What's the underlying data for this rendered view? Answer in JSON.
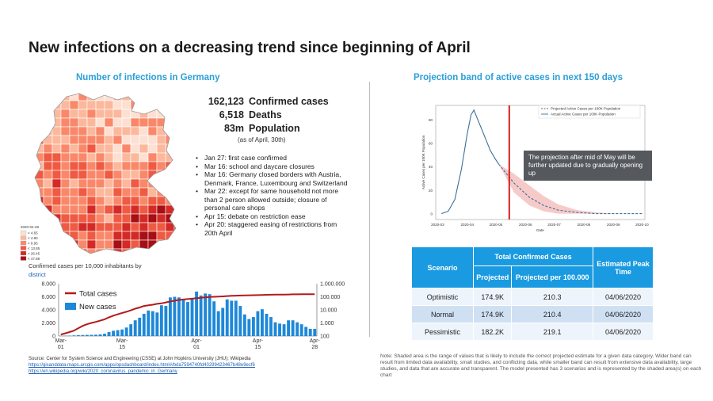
{
  "page": {
    "title": "New infections on a decreasing trend since beginning of April",
    "left_subtitle": "Number of infections in Germany",
    "right_subtitle": "Projection band of active cases in next 150 days"
  },
  "stats": [
    {
      "value": "162,123",
      "label": "Confirmed cases"
    },
    {
      "value": "6,518",
      "label": "Deaths"
    },
    {
      "value": "83m",
      "label": "Population"
    }
  ],
  "as_of": "(as of April, 30th)",
  "events": [
    "Jan 27: first case confirmed",
    "Mar 16: school and daycare closures",
    "Mar 16: Germany closed borders with Austria, Denmark, France, Luxembourg and Switzerland",
    "Mar 22: except for same household not more than 2 person allowed outside; closure of personal care shops",
    "Apr 15: debate on restriction ease",
    "Apr 20: staggered easing of restrictions from 20th April"
  ],
  "map": {
    "legend_title": "2020-04-28",
    "legend": [
      "< 4.65",
      "< 4.80",
      "< 9.95",
      "< 13.85",
      "< 26.45",
      "< 47.88"
    ],
    "caption": "Confirmed cases per 10,000 inhabitants by",
    "caption_link": "district",
    "colors": [
      "#fde0d2",
      "#fcb89c",
      "#f9886a",
      "#ef5a42",
      "#d42a26",
      "#a50f15"
    ]
  },
  "chart_data": [
    {
      "type": "bar",
      "title": "",
      "categories": [
        "Mar-01",
        "Mar-02",
        "Mar-03",
        "Mar-04",
        "Mar-05",
        "Mar-06",
        "Mar-07",
        "Mar-08",
        "Mar-09",
        "Mar-10",
        "Mar-11",
        "Mar-12",
        "Mar-13",
        "Mar-14",
        "Mar-15",
        "Mar-16",
        "Mar-17",
        "Mar-18",
        "Mar-19",
        "Mar-20",
        "Mar-21",
        "Mar-22",
        "Mar-23",
        "Mar-24",
        "Mar-25",
        "Mar-26",
        "Mar-27",
        "Mar-28",
        "Mar-29",
        "Mar-30",
        "Mar-31",
        "Apr-01",
        "Apr-02",
        "Apr-03",
        "Apr-04",
        "Apr-05",
        "Apr-06",
        "Apr-07",
        "Apr-08",
        "Apr-09",
        "Apr-10",
        "Apr-11",
        "Apr-12",
        "Apr-13",
        "Apr-14",
        "Apr-15",
        "Apr-16",
        "Apr-17",
        "Apr-18",
        "Apr-19",
        "Apr-20",
        "Apr-21",
        "Apr-22",
        "Apr-23",
        "Apr-24",
        "Apr-25",
        "Apr-26",
        "Apr-27",
        "Apr-28"
      ],
      "x_tick_labels": [
        "Mar-\n01",
        "Mar-\n15",
        "Apr-\n01",
        "Apr-\n15",
        "Apr-\n28"
      ],
      "series": [
        {
          "name": "New cases",
          "values": [
            30,
            40,
            60,
            90,
            120,
            150,
            170,
            180,
            200,
            250,
            350,
            600,
            800,
            900,
            1000,
            1300,
            1800,
            2400,
            2800,
            3400,
            3900,
            3800,
            3600,
            4700,
            4600,
            5900,
            6000,
            5900,
            5600,
            5200,
            5800,
            6800,
            6200,
            6500,
            6400,
            5300,
            3800,
            4300,
            5600,
            5400,
            5400,
            4600,
            3300,
            2600,
            2900,
            3800,
            4100,
            3400,
            2900,
            2100,
            1900,
            1800,
            2400,
            2400,
            2100,
            1800,
            1400,
            1100,
            1100
          ]
        },
        {
          "name": "Total cases",
          "values": [
            130,
            160,
            200,
            260,
            400,
            600,
            800,
            1000,
            1200,
            1500,
            1900,
            2700,
            3600,
            4600,
            5800,
            7200,
            9200,
            12300,
            15300,
            19800,
            22200,
            24900,
            29000,
            31500,
            37300,
            43900,
            50800,
            57300,
            61900,
            66900,
            71800,
            77900,
            84800,
            91200,
            96100,
            100100,
            103300,
            107700,
            113300,
            118200,
            122200,
            124900,
            127900,
            130400,
            131400,
            134800,
            137400,
            141400,
            143300,
            145200,
            147000,
            148300,
            150600,
            153100,
            154100,
            156300,
            157600,
            158800,
            159100
          ]
        }
      ],
      "y_left": {
        "ticks": [
          "0",
          "2.000",
          "4.000",
          "6.000",
          "8.000"
        ],
        "range": [
          0,
          8000
        ]
      },
      "y_right": {
        "ticks": [
          "100",
          "1.000",
          "10.000",
          "100.000",
          "1.000.000"
        ],
        "scale": "log",
        "range": [
          100,
          1000000
        ]
      },
      "colors": {
        "Total cases": "#b31b1b",
        "New cases": "#1e88d8"
      }
    },
    {
      "type": "line",
      "title": "",
      "xlabel": "Date",
      "ylabel": "Active Cases per 100K Population",
      "x_ticks": [
        "2020-03",
        "2020-04",
        "2020-05",
        "2020-06",
        "2020-07",
        "2020-08",
        "2020-09",
        "2020-10"
      ],
      "y_ticks": [
        "0",
        "20",
        "40",
        "60",
        "80"
      ],
      "ylim": [
        -5,
        92
      ],
      "series": [
        {
          "name": "Actual Active Cases per 100K Population",
          "style": "solid",
          "x": [
            "2020-03-05",
            "2020-03-12",
            "2020-03-19",
            "2020-03-26",
            "2020-04-01",
            "2020-04-05",
            "2020-04-08",
            "2020-04-12",
            "2020-04-16",
            "2020-04-20",
            "2020-04-25",
            "2020-04-30",
            "2020-05-04"
          ],
          "y": [
            0,
            2,
            12,
            38,
            68,
            84,
            88,
            80,
            72,
            64,
            54,
            47,
            42
          ]
        },
        {
          "name": "Projected Active Cases per 100K Population",
          "style": "dashed",
          "x": [
            "2020-05-04",
            "2020-05-20",
            "2020-06-05",
            "2020-06-20",
            "2020-07-05",
            "2020-07-25",
            "2020-08-15",
            "2020-09-05",
            "2020-10-01"
          ],
          "y": [
            42,
            26,
            14,
            7,
            3,
            1,
            0,
            0,
            0
          ]
        }
      ],
      "band": {
        "x": [
          "2020-05-04",
          "2020-05-20",
          "2020-06-05",
          "2020-06-20",
          "2020-07-05",
          "2020-07-25",
          "2020-08-15",
          "2020-09-05",
          "2020-10-01"
        ],
        "upper": [
          42,
          34,
          24,
          15,
          8,
          3,
          1,
          0,
          0
        ],
        "lower": [
          42,
          18,
          7,
          2,
          0,
          0,
          0,
          0,
          0
        ]
      },
      "marker": {
        "x": "2020-05-15",
        "color": "#d62020"
      },
      "colors": {
        "actual": "#3b6f96",
        "projected": "#3b6f96",
        "band": "#f4b8b8"
      },
      "legend_position": "top-right"
    }
  ],
  "callout": "The projection after mid of May will be further updated due to gradually opening up",
  "scenario_table": {
    "headers": {
      "scenario": "Scenario",
      "group": "Total Confirmed Cases",
      "projected": "Projected",
      "per100k": "Projected per 100.000",
      "peak": "Estimated Peak Time"
    },
    "rows": [
      {
        "scenario": "Optimistic",
        "projected": "174.9K",
        "per100k": "210.3",
        "peak": "04/06/2020"
      },
      {
        "scenario": "Normal",
        "projected": "174.9K",
        "per100k": "210.4",
        "peak": "04/06/2020"
      },
      {
        "scenario": "Pessimistic",
        "projected": "182.2K",
        "per100k": "219.1",
        "peak": "04/06/2020"
      }
    ]
  },
  "source": {
    "text": "Source: Center for System Science and Engineering (CSSE) at John Hopkins University (JHU); Wikipedia",
    "link1": "https://gisanddata.maps.arcgis.com/apps/opsdashboard/index.html#/bda7594740fd40299423467b48e9ecf6",
    "link2": "https://en.wikipedia.org/wiki/2020_coronavirus_pandemic_in_Germany"
  },
  "note": "Note: Shaded area is the range of values that is likely to include the correct projected estimate for a given data category. Wider band can result from limited data availability, small studies, and conflicting data, while smaller band can result from extensive data availability, large studies, and data that are accurate and transparent. The model presented has 3 scenarios and is represented by the shaded area(s) on each chart"
}
